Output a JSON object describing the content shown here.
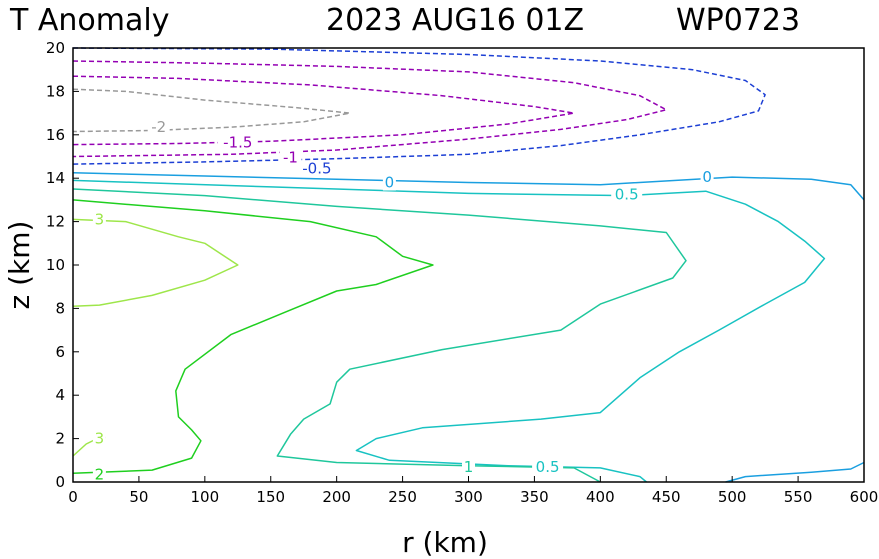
{
  "header": {
    "title": "T Anomaly",
    "datetime": "2023 AUG16 01Z",
    "storm": "WP0723"
  },
  "chart_data": {
    "type": "contour",
    "xlabel": "r (km)",
    "ylabel": "z (km)",
    "xlim": [
      0,
      600
    ],
    "ylim": [
      0,
      20
    ],
    "xticks": [
      "0",
      "50",
      "100",
      "150",
      "200",
      "250",
      "300",
      "350",
      "400",
      "450",
      "500",
      "550",
      "600"
    ],
    "yticks": [
      "0",
      "2",
      "4",
      "6",
      "8",
      "10",
      "12",
      "14",
      "16",
      "18",
      "20"
    ],
    "contours": [
      {
        "level": -2,
        "label": "-2",
        "color": "#999999",
        "dashed": true,
        "points": [
          [
            0,
            18.1
          ],
          [
            40,
            18.0
          ],
          [
            100,
            17.6
          ],
          [
            170,
            17.25
          ],
          [
            210,
            17.0
          ],
          [
            175,
            16.6
          ],
          [
            120,
            16.35
          ],
          [
            60,
            16.2
          ],
          [
            0,
            16.15
          ]
        ]
      },
      {
        "level": -1.5,
        "label": "-1.5",
        "color": "#9400b3",
        "dashed": true,
        "points": [
          [
            0,
            18.7
          ],
          [
            80,
            18.6
          ],
          [
            180,
            18.3
          ],
          [
            280,
            17.8
          ],
          [
            350,
            17.3
          ],
          [
            380,
            17.0
          ],
          [
            330,
            16.5
          ],
          [
            250,
            16.0
          ],
          [
            150,
            15.7
          ],
          [
            80,
            15.6
          ],
          [
            0,
            15.55
          ]
        ]
      },
      {
        "level": -1,
        "label": "-1",
        "color": "#9400b3",
        "dashed": true,
        "points": [
          [
            0,
            19.4
          ],
          [
            100,
            19.3
          ],
          [
            200,
            19.15
          ],
          [
            300,
            18.9
          ],
          [
            380,
            18.4
          ],
          [
            430,
            17.8
          ],
          [
            450,
            17.15
          ],
          [
            420,
            16.7
          ],
          [
            370,
            16.25
          ],
          [
            300,
            15.8
          ],
          [
            200,
            15.3
          ],
          [
            120,
            15.1
          ],
          [
            0,
            15.0
          ]
        ]
      },
      {
        "level": -0.5,
        "label": "-0.5",
        "color": "#1c3fd4",
        "dashed": true,
        "points": [
          [
            0,
            20.0
          ],
          [
            150,
            19.95
          ],
          [
            300,
            19.7
          ],
          [
            400,
            19.4
          ],
          [
            470,
            19.0
          ],
          [
            510,
            18.5
          ],
          [
            525,
            17.85
          ],
          [
            520,
            17.1
          ],
          [
            490,
            16.6
          ],
          [
            430,
            16.0
          ],
          [
            370,
            15.5
          ],
          [
            300,
            15.1
          ],
          [
            200,
            14.9
          ],
          [
            100,
            14.75
          ],
          [
            0,
            14.65
          ]
        ]
      },
      {
        "level": 0,
        "label": "0",
        "color": "#1a9fe0",
        "dashed": false,
        "points": [
          [
            0,
            14.25
          ],
          [
            100,
            14.1
          ],
          [
            200,
            13.95
          ],
          [
            300,
            13.8
          ],
          [
            400,
            13.7
          ],
          [
            500,
            14.05
          ],
          [
            560,
            13.95
          ],
          [
            590,
            13.7
          ],
          [
            600,
            13.0
          ]
        ]
      },
      {
        "level": 0.5,
        "label": "0.5",
        "color": "#18c2c2",
        "dashed": false,
        "points": [
          [
            0,
            13.9
          ],
          [
            150,
            13.6
          ],
          [
            300,
            13.3
          ],
          [
            420,
            13.2
          ],
          [
            450,
            13.3
          ],
          [
            480,
            13.4
          ],
          [
            510,
            12.8
          ],
          [
            535,
            12.0
          ],
          [
            555,
            11.1
          ],
          [
            570,
            10.3
          ],
          [
            555,
            9.2
          ],
          [
            525,
            8.2
          ],
          [
            490,
            7.0
          ],
          [
            460,
            6.0
          ],
          [
            430,
            4.8
          ],
          [
            400,
            3.2
          ],
          [
            355,
            2.9
          ],
          [
            265,
            2.5
          ],
          [
            230,
            2.0
          ],
          [
            215,
            1.45
          ],
          [
            240,
            1.0
          ],
          [
            330,
            0.75
          ],
          [
            400,
            0.65
          ],
          [
            430,
            0.25
          ],
          [
            435,
            0.0
          ]
        ]
      },
      {
        "level": 0.5,
        "label": "",
        "color": "#1a9fe0",
        "dashed": false,
        "points": [
          [
            495,
            0.0
          ],
          [
            510,
            0.25
          ],
          [
            560,
            0.45
          ],
          [
            590,
            0.6
          ],
          [
            600,
            0.9
          ]
        ]
      },
      {
        "level": 1,
        "label": "1",
        "color": "#1fc79c",
        "dashed": false,
        "points": [
          [
            0,
            13.5
          ],
          [
            100,
            13.2
          ],
          [
            200,
            12.7
          ],
          [
            300,
            12.3
          ],
          [
            400,
            11.8
          ],
          [
            450,
            11.5
          ],
          [
            465,
            10.2
          ],
          [
            455,
            9.4
          ],
          [
            400,
            8.2
          ],
          [
            370,
            7.0
          ],
          [
            280,
            6.1
          ],
          [
            210,
            5.2
          ],
          [
            200,
            4.6
          ],
          [
            195,
            3.6
          ],
          [
            175,
            2.9
          ],
          [
            165,
            2.2
          ],
          [
            155,
            1.2
          ],
          [
            200,
            0.9
          ],
          [
            300,
            0.75
          ],
          [
            380,
            0.65
          ],
          [
            400,
            0.0
          ]
        ]
      },
      {
        "level": 2,
        "label": "2",
        "color": "#1fcf1f",
        "dashed": false,
        "points": [
          [
            0,
            13.0
          ],
          [
            100,
            12.5
          ],
          [
            180,
            12.0
          ],
          [
            230,
            11.3
          ],
          [
            250,
            10.4
          ],
          [
            273,
            10.0
          ],
          [
            230,
            9.1
          ],
          [
            200,
            8.8
          ],
          [
            160,
            7.8
          ],
          [
            120,
            6.8
          ],
          [
            85,
            5.2
          ],
          [
            78,
            4.2
          ],
          [
            80,
            3.0
          ],
          [
            90,
            2.4
          ],
          [
            97,
            1.9
          ],
          [
            90,
            1.1
          ],
          [
            60,
            0.55
          ],
          [
            0,
            0.4
          ]
        ]
      },
      {
        "level": 3,
        "label": "3",
        "color": "#9ee64a",
        "dashed": false,
        "points": [
          [
            0,
            12.1
          ],
          [
            40,
            12.0
          ],
          [
            80,
            11.3
          ],
          [
            100,
            11.0
          ],
          [
            125,
            10.0
          ],
          [
            100,
            9.3
          ],
          [
            60,
            8.6
          ],
          [
            20,
            8.15
          ],
          [
            0,
            8.1
          ]
        ]
      },
      {
        "level": 3,
        "label": "3",
        "color": "#9ee64a",
        "dashed": false,
        "points": [
          [
            0,
            1.2
          ],
          [
            10,
            1.75
          ],
          [
            20,
            2.05
          ],
          [
            25,
            2.05
          ]
        ]
      }
    ],
    "labels": [
      {
        "text": "-2",
        "x": 65,
        "y": 16.35,
        "color": "#999999"
      },
      {
        "text": "-1.5",
        "x": 125,
        "y": 15.65,
        "color": "#9400b3"
      },
      {
        "text": "-1",
        "x": 165,
        "y": 14.95,
        "color": "#9400b3"
      },
      {
        "text": "-0.5",
        "x": 185,
        "y": 14.45,
        "color": "#1c3fd4"
      },
      {
        "text": "0",
        "x": 240,
        "y": 13.8,
        "color": "#1a9fe0"
      },
      {
        "text": "0",
        "x": 481,
        "y": 14.05,
        "color": "#1a9fe0"
      },
      {
        "text": "0.5",
        "x": 420,
        "y": 13.25,
        "color": "#18c2c2"
      },
      {
        "text": "3",
        "x": 20,
        "y": 12.1,
        "color": "#9ee64a"
      },
      {
        "text": "3",
        "x": 20,
        "y": 2.0,
        "color": "#9ee64a"
      },
      {
        "text": "2",
        "x": 20,
        "y": 0.35,
        "color": "#1fcf1f"
      },
      {
        "text": "1",
        "x": 300,
        "y": 0.7,
        "color": "#1fc79c"
      },
      {
        "text": "0.5",
        "x": 360,
        "y": 0.7,
        "color": "#18c2c2"
      }
    ]
  }
}
